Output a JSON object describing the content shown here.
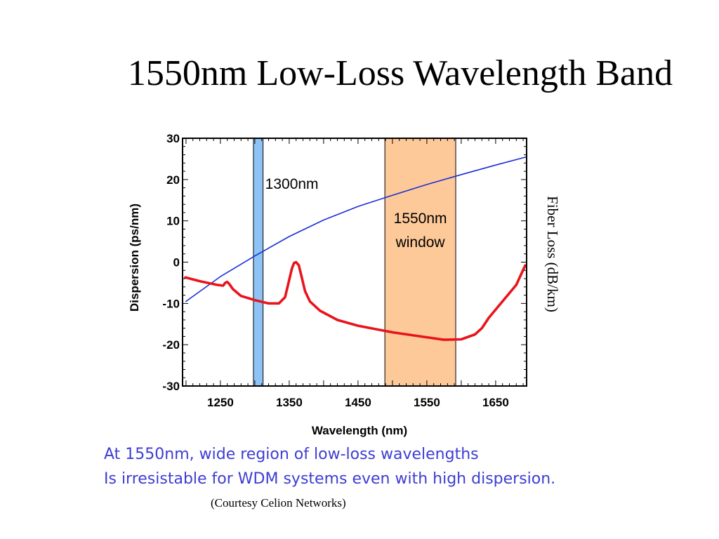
{
  "slide": {
    "title": "1550nm Low-Loss Wavelength Band",
    "caption_line1": "At 1550nm, wide region of low-loss wavelengths",
    "caption_line2": "Is irresistable for WDM systems even with high dispersion.",
    "courtesy": "(Courtesy Celion Networks)",
    "caption_color": "#3d3dd4"
  },
  "chart_data": {
    "type": "line",
    "title": "",
    "xlabel": "Wavelength (nm)",
    "ylabel": "Dispersion (ps/nm)",
    "y2label": "Fiber Loss (dB/km)",
    "xlim": [
      1195,
      1695
    ],
    "ylim": [
      -30,
      30
    ],
    "x_ticks": [
      1250,
      1350,
      1450,
      1550,
      1650
    ],
    "y_ticks": [
      -30,
      -20,
      -10,
      0,
      10,
      20,
      30
    ],
    "grid": false,
    "bands": [
      {
        "label": "1300nm",
        "x0": 1298,
        "x1": 1312,
        "color": "#8ec4f5"
      },
      {
        "label": "1550nm window",
        "label_lines": [
          "1550nm",
          "window"
        ],
        "x0": 1489,
        "x1": 1592,
        "color": "#fdc999"
      }
    ],
    "series": [
      {
        "color": "#1a2fd6",
        "x": [
          1200,
          1250,
          1300,
          1350,
          1400,
          1450,
          1500,
          1550,
          1600,
          1650,
          1695
        ],
        "y": [
          -9.5,
          -3.5,
          1.5,
          6.2,
          10.2,
          13.5,
          16.2,
          18.8,
          21.2,
          23.5,
          25.5
        ]
      },
      {
        "color": "#e8141c",
        "x": [
          1199,
          1220,
          1245,
          1254,
          1257,
          1260,
          1263,
          1268,
          1280,
          1300,
          1320,
          1335,
          1344,
          1349,
          1354,
          1357,
          1360,
          1364,
          1368,
          1373,
          1380,
          1395,
          1420,
          1450,
          1500,
          1550,
          1575,
          1600,
          1620,
          1630,
          1640,
          1660,
          1680,
          1693
        ],
        "y": [
          -3.7,
          -4.6,
          -5.5,
          -5.7,
          -5.0,
          -4.8,
          -5.3,
          -6.5,
          -8.2,
          -9.2,
          -10.0,
          -10.0,
          -8.5,
          -5.0,
          -1.5,
          -0.2,
          0.0,
          -0.8,
          -3.5,
          -7.0,
          -9.5,
          -11.8,
          -14.0,
          -15.4,
          -17.0,
          -18.2,
          -18.8,
          -18.7,
          -17.5,
          -16.0,
          -13.5,
          -9.5,
          -5.5,
          -0.8
        ]
      }
    ]
  }
}
